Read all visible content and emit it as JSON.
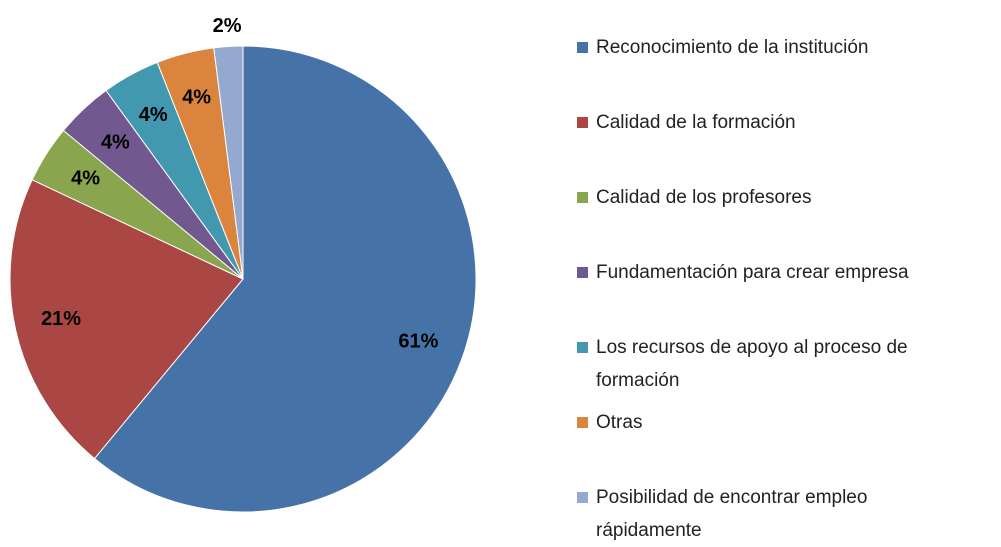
{
  "chart_data": {
    "type": "pie",
    "categories": [
      "Reconocimiento de la institución",
      "Calidad de la formación",
      "Calidad de los profesores",
      "Fundamentación para crear empresa",
      "Los recursos de apoyo al proceso de formación",
      "Otras",
      "Posibilidad de encontrar empleo rápidamente"
    ],
    "values": [
      61,
      21,
      4,
      4,
      4,
      4,
      2
    ],
    "value_labels": [
      "61%",
      "21%",
      "4%",
      "4%",
      "4%",
      "4%",
      "2%"
    ],
    "colors": [
      "#4572A7",
      "#AA4643",
      "#89A54E",
      "#71588F",
      "#4198AF",
      "#DB843D",
      "#93A9CF"
    ],
    "legend": "right"
  }
}
